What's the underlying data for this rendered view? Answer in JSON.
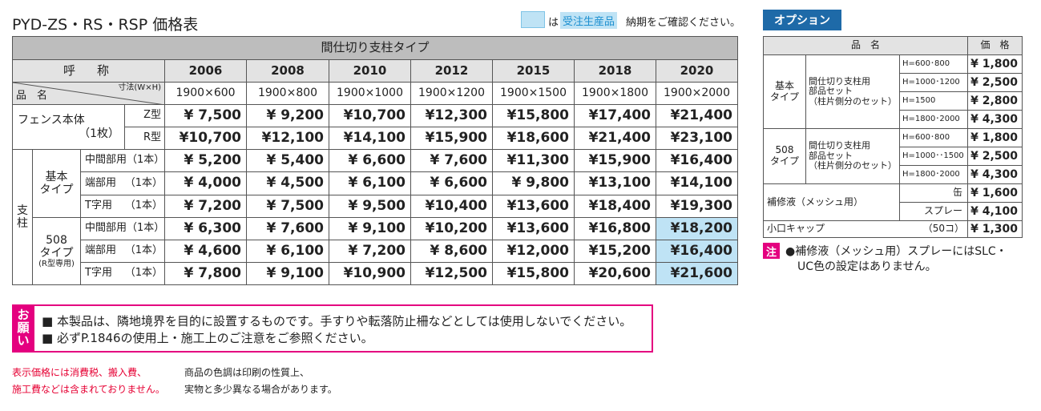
{
  "title": "PYD-ZS・RS・RSP 価格表",
  "legend": {
    "mark_text": "は",
    "made_to_order": "受注生産品",
    "note": "納期をご確認ください。"
  },
  "main_table": {
    "caption": "間仕切り支柱タイプ",
    "name_header": "呼　称",
    "item_header": "品　名",
    "size_header": "寸法(W×H)",
    "codes": [
      "2006",
      "2008",
      "2010",
      "2012",
      "2015",
      "2018",
      "2020"
    ],
    "sizes": [
      "1900×600",
      "1900×800",
      "1900×1000",
      "1900×1200",
      "1900×1500",
      "1900×1800",
      "1900×2000"
    ],
    "fence": {
      "label": "フェンス本体",
      "count": "（1枚）",
      "rows": [
        {
          "variant": "Z型",
          "prices": [
            "¥ 7,500",
            "¥ 9,200",
            "¥10,700",
            "¥12,300",
            "¥15,800",
            "¥17,400",
            "¥21,400"
          ]
        },
        {
          "variant": "R型",
          "prices": [
            "¥10,700",
            "¥12,100",
            "¥14,100",
            "¥15,900",
            "¥18,600",
            "¥21,400",
            "¥23,100"
          ]
        }
      ]
    },
    "post_label": [
      "支",
      "柱"
    ],
    "groups": [
      {
        "label": [
          "基本",
          "タイプ"
        ],
        "rows": [
          {
            "part": "中間部用",
            "count": "（1本）",
            "prices": [
              "¥ 5,200",
              "¥ 5,400",
              "¥ 6,600",
              "¥ 7,600",
              "¥11,300",
              "¥15,900",
              "¥16,400"
            ]
          },
          {
            "part": "端部用",
            "count": "（1本）",
            "prices": [
              "¥ 4,000",
              "¥ 4,500",
              "¥ 6,100",
              "¥ 6,600",
              "¥ 9,800",
              "¥13,100",
              "¥14,100"
            ]
          },
          {
            "part": "T字用",
            "count": "（1本）",
            "prices": [
              "¥ 7,200",
              "¥ 7,500",
              "¥ 9,500",
              "¥10,400",
              "¥13,600",
              "¥18,400",
              "¥19,300"
            ]
          }
        ]
      },
      {
        "label": [
          "508",
          "タイプ",
          "(R型専用)"
        ],
        "rows": [
          {
            "part": "中間部用",
            "count": "（1本）",
            "prices": [
              "¥ 6,300",
              "¥ 7,600",
              "¥ 9,100",
              "¥10,200",
              "¥13,600",
              "¥16,800",
              "¥18,200"
            ]
          },
          {
            "part": "端部用",
            "count": "（1本）",
            "prices": [
              "¥ 4,600",
              "¥ 6,100",
              "¥ 7,200",
              "¥ 8,600",
              "¥12,000",
              "¥15,200",
              "¥16,400"
            ]
          },
          {
            "part": "T字用",
            "count": "（1本）",
            "prices": [
              "¥ 7,800",
              "¥ 9,100",
              "¥10,900",
              "¥12,500",
              "¥15,800",
              "¥20,600",
              "¥21,600"
            ]
          }
        ]
      }
    ]
  },
  "options": {
    "tab": "オプション",
    "header": [
      "品　名",
      "価　格"
    ],
    "groups": [
      {
        "label": [
          "基本",
          "タイプ"
        ],
        "item": [
          "間仕切り支柱用",
          "部品セット",
          "（柱片側分のセット）"
        ],
        "rows": [
          {
            "size": "H=600･800",
            "price": "¥ 1,800"
          },
          {
            "size": "H=1000･1200",
            "price": "¥ 2,500"
          },
          {
            "size": "H=1500",
            "price": "¥ 2,800"
          },
          {
            "size": "H=1800･2000",
            "price": "¥ 4,300"
          }
        ]
      },
      {
        "label": [
          "508",
          "タイプ"
        ],
        "item": [
          "間仕切り支柱用",
          "部品セット",
          "（柱片側分のセット）"
        ],
        "rows": [
          {
            "size": "H=600･800",
            "price": "¥ 1,800"
          },
          {
            "size": "H=1000･･1500",
            "price": "¥ 2,500"
          },
          {
            "size": "H=1800･2000",
            "price": "¥ 4,300"
          }
        ]
      }
    ],
    "repair": {
      "label": "補修液（メッシュ用）",
      "rows": [
        {
          "size": "缶",
          "price": "¥ 1,600"
        },
        {
          "size": "スプレー",
          "price": "¥ 4,100"
        }
      ]
    },
    "cap": {
      "label": "小口キャップ",
      "qty": "（50コ）",
      "price": "¥ 1,300"
    },
    "note": {
      "mark": "注",
      "lines": [
        "●補修液（メッシュ用）スプレーにはSLC・",
        "UC色の設定はありません。"
      ]
    }
  },
  "request": {
    "label": [
      "お",
      "願",
      "い"
    ],
    "items": [
      "■ 本製品は、隣地境界を目的に設置するものです。手すりや転落防止柵などとしては使用しないでください。",
      "■ 必ずP.1846の使用上・施工上のご注意をご参照ください。"
    ]
  },
  "footer": {
    "tax_note": [
      "表示価格には消費税、搬入費、",
      "施工費などは含まれておりません。"
    ],
    "color_note": [
      "商品の色調は印刷の性質上、",
      "実物と多少異なる場合があります。"
    ]
  }
}
